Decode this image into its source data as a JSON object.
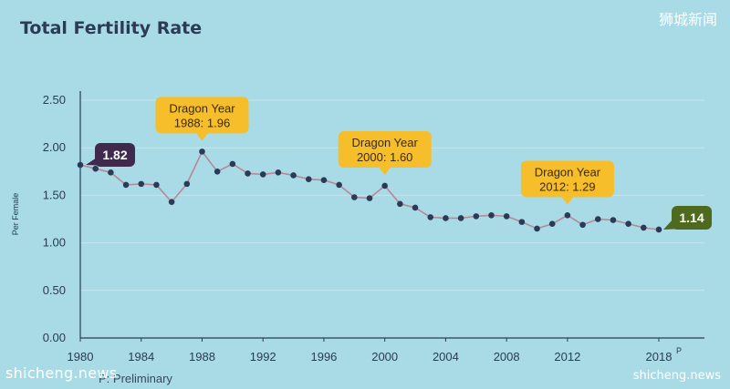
{
  "page": {
    "watermark_top": "狮城新闻",
    "watermark_bottom_left": "shicheng.news",
    "watermark_bottom_right": "shicheng.news",
    "footnote": "P: Preliminary"
  },
  "colors": {
    "background": "#a8dbe6",
    "line": "#b9869a",
    "point": "#2b3a55",
    "axis_text": "#2b3a55",
    "grid": "#c4e6ee",
    "callout_yellow": "#f6be2a",
    "callout_dark": "#3f2a4e",
    "callout_green": "#4e6a1e"
  },
  "chart_data": {
    "type": "line",
    "title": "Total Fertility Rate",
    "ylabel": "Per Female",
    "xlabel": "",
    "ylim": [
      0,
      2.5
    ],
    "xlim": [
      1980,
      2018
    ],
    "grid": true,
    "x_ticks": [
      {
        "value": 1980,
        "label": "1980"
      },
      {
        "value": 1984,
        "label": "1984"
      },
      {
        "value": 1988,
        "label": "1988"
      },
      {
        "value": 1992,
        "label": "1992"
      },
      {
        "value": 1996,
        "label": "1996"
      },
      {
        "value": 2000,
        "label": "2000"
      },
      {
        "value": 2004,
        "label": "2004"
      },
      {
        "value": 2008,
        "label": "2008"
      },
      {
        "value": 2012,
        "label": "2012"
      },
      {
        "value": 2018,
        "label": "2018",
        "sup": "P"
      }
    ],
    "y_ticks": [
      {
        "value": 0,
        "label": "0.00"
      },
      {
        "value": 0.5,
        "label": "0.50"
      },
      {
        "value": 1.0,
        "label": "1.00"
      },
      {
        "value": 1.5,
        "label": "1.50"
      },
      {
        "value": 2.0,
        "label": "2.00"
      },
      {
        "value": 2.5,
        "label": "2.50"
      }
    ],
    "x": [
      1980,
      1981,
      1982,
      1983,
      1984,
      1985,
      1986,
      1987,
      1988,
      1989,
      1990,
      1991,
      1992,
      1993,
      1994,
      1995,
      1996,
      1997,
      1998,
      1999,
      2000,
      2001,
      2002,
      2003,
      2004,
      2005,
      2006,
      2007,
      2008,
      2009,
      2010,
      2011,
      2012,
      2013,
      2014,
      2015,
      2016,
      2017,
      2018
    ],
    "series": [
      {
        "values": [
          1.82,
          1.78,
          1.74,
          1.61,
          1.62,
          1.61,
          1.43,
          1.62,
          1.96,
          1.75,
          1.83,
          1.73,
          1.72,
          1.74,
          1.71,
          1.67,
          1.66,
          1.61,
          1.48,
          1.47,
          1.6,
          1.41,
          1.37,
          1.27,
          1.26,
          1.26,
          1.28,
          1.29,
          1.28,
          1.22,
          1.15,
          1.2,
          1.29,
          1.19,
          1.25,
          1.24,
          1.2,
          1.16,
          1.14
        ]
      }
    ],
    "annotations": [
      {
        "x": 1988,
        "y": 1.96,
        "style": "yellow",
        "line1": "Dragon Year",
        "line2": "1988: 1.96"
      },
      {
        "x": 2000,
        "y": 1.6,
        "style": "yellow",
        "line1": "Dragon Year",
        "line2": "2000: 1.60"
      },
      {
        "x": 2012,
        "y": 1.29,
        "style": "yellow",
        "line1": "Dragon Year",
        "line2": "2012: 1.29"
      },
      {
        "x": 1980,
        "y": 1.82,
        "style": "dark",
        "line1": "1.82",
        "line2": ""
      },
      {
        "x": 2018,
        "y": 1.14,
        "style": "green",
        "line1": "1.14",
        "line2": ""
      }
    ]
  }
}
